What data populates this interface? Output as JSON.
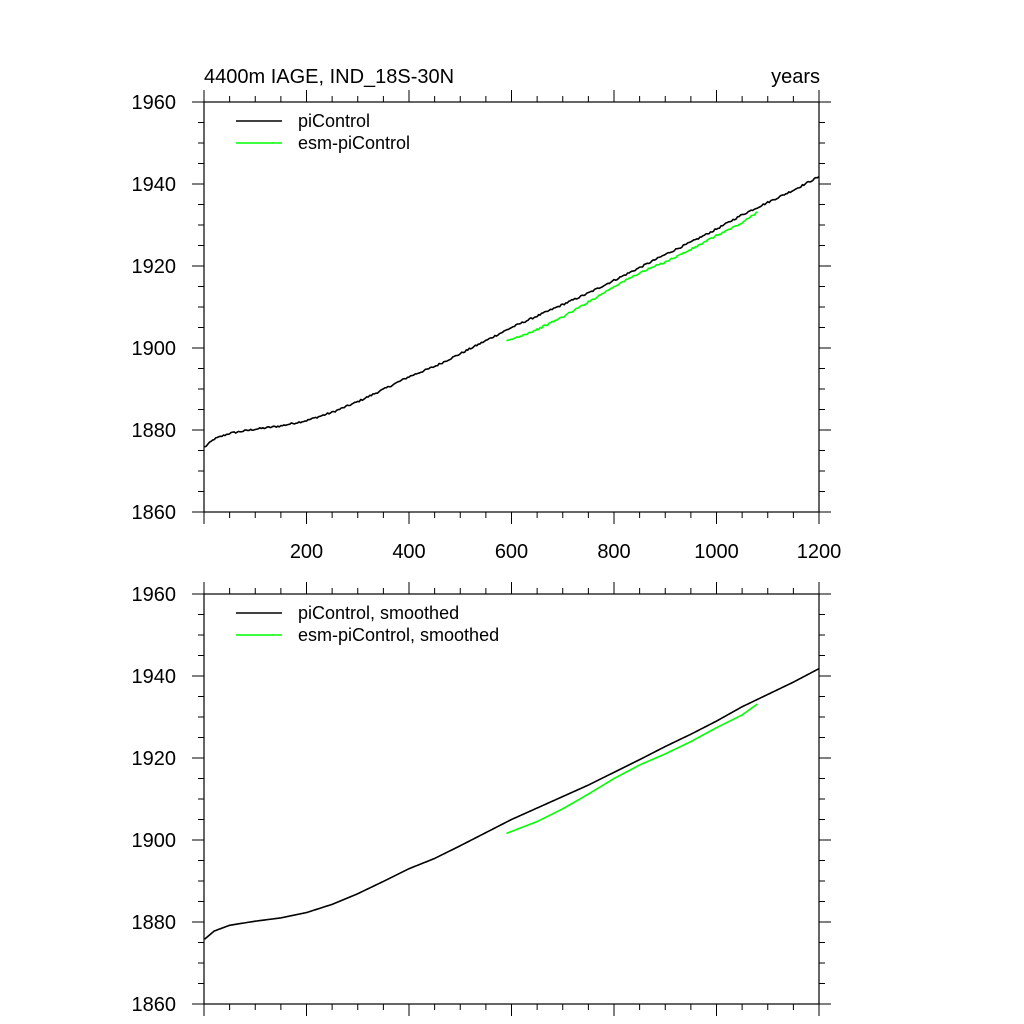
{
  "chart_data": [
    {
      "type": "line",
      "title_left": "4400m IAGE, IND_18S-30N",
      "title_right": "years",
      "xlim": [
        0,
        1200
      ],
      "ylim": [
        1860,
        1960
      ],
      "x_ticks": [
        200,
        400,
        600,
        800,
        1000,
        1200
      ],
      "y_ticks": [
        1860,
        1880,
        1900,
        1920,
        1940,
        1960
      ],
      "legend_placement": "top-left",
      "series": [
        {
          "name": "piControl",
          "color": "#000000",
          "x": [
            1,
            20,
            50,
            100,
            150,
            200,
            250,
            300,
            350,
            400,
            450,
            500,
            550,
            600,
            650,
            700,
            750,
            800,
            850,
            900,
            950,
            1000,
            1050,
            1100,
            1150,
            1200
          ],
          "y": [
            1875.8,
            1877.8,
            1879.2,
            1880.2,
            1881.0,
            1882.3,
            1884.3,
            1886.9,
            1889.9,
            1893.0,
            1895.5,
            1898.6,
            1901.8,
            1905.0,
            1907.8,
            1910.6,
            1913.4,
            1916.5,
            1919.6,
            1922.8,
            1925.8,
            1929.0,
            1932.5,
            1935.5,
            1938.5,
            1941.8
          ]
        },
        {
          "name": "esm-piControl",
          "color": "#00ff00",
          "x": [
            590,
            650,
            700,
            750,
            800,
            850,
            900,
            950,
            1000,
            1050,
            1080
          ],
          "y": [
            1901.6,
            1904.5,
            1907.6,
            1911.2,
            1915.0,
            1918.3,
            1921.0,
            1924.0,
            1927.4,
            1930.5,
            1933.2
          ]
        }
      ]
    },
    {
      "type": "line",
      "xlim": [
        0,
        1200
      ],
      "ylim": [
        1860,
        1960
      ],
      "y_ticks": [
        1860,
        1880,
        1900,
        1920,
        1940,
        1960
      ],
      "legend_placement": "top-left",
      "series": [
        {
          "name": "piControl, smoothed",
          "color": "#000000",
          "x": [
            1,
            20,
            50,
            100,
            150,
            200,
            250,
            300,
            350,
            400,
            450,
            500,
            550,
            600,
            650,
            700,
            750,
            800,
            850,
            900,
            950,
            1000,
            1050,
            1100,
            1150,
            1200
          ],
          "y": [
            1875.8,
            1877.8,
            1879.2,
            1880.2,
            1881.0,
            1882.3,
            1884.3,
            1886.9,
            1889.9,
            1893.0,
            1895.5,
            1898.6,
            1901.8,
            1905.0,
            1907.8,
            1910.6,
            1913.4,
            1916.5,
            1919.6,
            1922.8,
            1925.8,
            1929.0,
            1932.5,
            1935.5,
            1938.5,
            1941.8
          ]
        },
        {
          "name": "esm-piControl, smoothed",
          "color": "#00ff00",
          "x": [
            590,
            650,
            700,
            750,
            800,
            850,
            900,
            950,
            1000,
            1050,
            1080
          ],
          "y": [
            1901.6,
            1904.5,
            1907.6,
            1911.2,
            1915.0,
            1918.3,
            1921.0,
            1924.0,
            1927.4,
            1930.5,
            1933.2
          ]
        }
      ]
    }
  ]
}
